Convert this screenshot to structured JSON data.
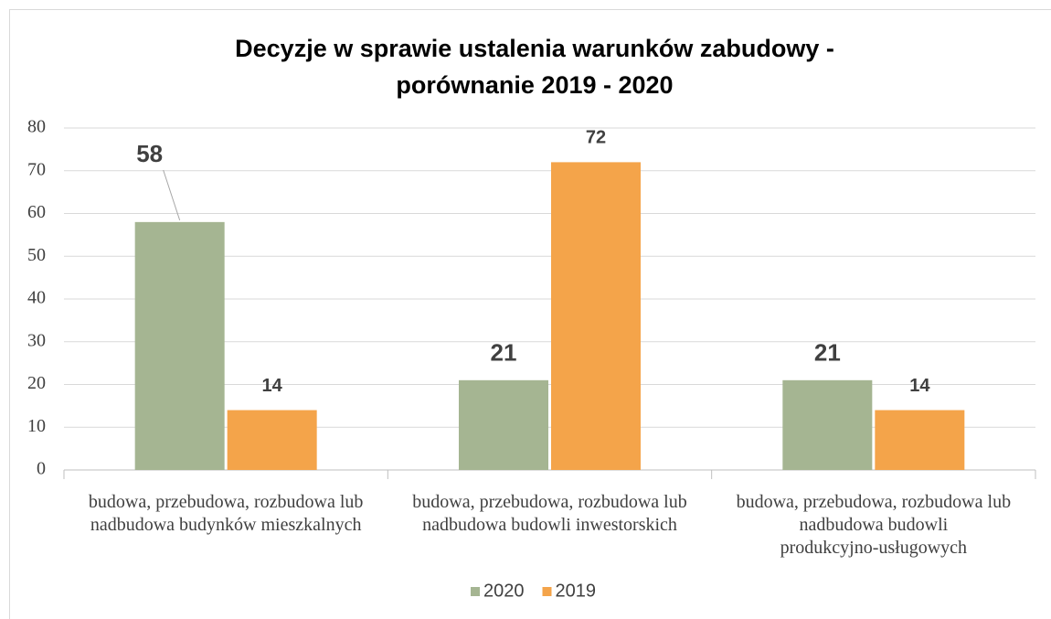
{
  "chart_data": {
    "type": "bar",
    "title": "Decyzje w sprawie ustalenia warunków zabudowy - porównanie 2019 - 2020",
    "categories": [
      "budowa, przebudowa, rozbudowa lub nadbudowa budynków mieszkalnych",
      "budowa, przebudowa, rozbudowa lub nadbudowa budowli inwestorskich",
      "budowa, przebudowa, rozbudowa lub nadbudowa budowli produkcyjno-usługowych"
    ],
    "series": [
      {
        "name": "2020",
        "color": "#a5b592",
        "values": [
          58,
          21,
          21
        ]
      },
      {
        "name": "2019",
        "color": "#f4a44a",
        "values": [
          14,
          72,
          14
        ]
      }
    ],
    "ylim": [
      0,
      80
    ],
    "yticks": [
      0,
      10,
      20,
      30,
      40,
      50,
      60,
      70,
      80
    ],
    "grid": true,
    "legend": "bottom"
  }
}
